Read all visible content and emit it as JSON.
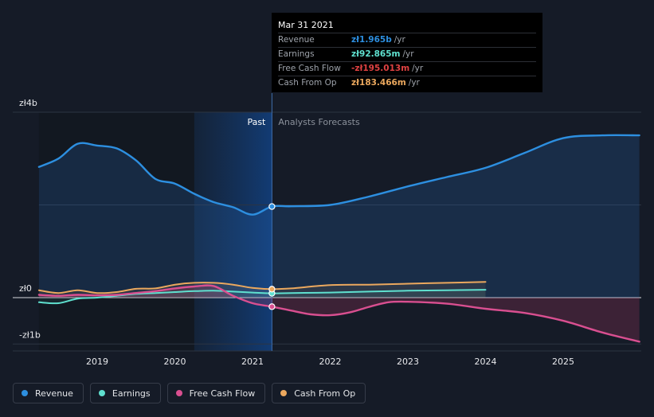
{
  "chart_data": {
    "type": "line",
    "currency": "zł",
    "ylim": [
      -1.0,
      4.0
    ],
    "xlim": [
      2018.25,
      2025.98
    ],
    "y_ticks": [
      {
        "value": 4.0,
        "label": "zł4b"
      },
      {
        "value": 0.0,
        "label": "zł0"
      },
      {
        "value": -1.0,
        "label": "-zł1b"
      }
    ],
    "x_ticks": [
      {
        "value": 2019,
        "label": "2019"
      },
      {
        "value": 2020,
        "label": "2020"
      },
      {
        "value": 2021,
        "label": "2021"
      },
      {
        "value": 2022,
        "label": "2022"
      },
      {
        "value": 2023,
        "label": "2023"
      },
      {
        "value": 2024,
        "label": "2024"
      },
      {
        "value": 2025,
        "label": "2025"
      }
    ],
    "divider_x": 2021.25,
    "highlight_range": [
      2020.25,
      2021.25
    ],
    "past_label": "Past",
    "forecast_label": "Analysts Forecasts",
    "series": [
      {
        "name": "Revenue",
        "color": "#2d8fe0",
        "points": [
          [
            2018.25,
            2.82
          ],
          [
            2018.5,
            3.0
          ],
          [
            2018.75,
            3.32
          ],
          [
            2019.0,
            3.28
          ],
          [
            2019.25,
            3.22
          ],
          [
            2019.5,
            2.96
          ],
          [
            2019.75,
            2.56
          ],
          [
            2020.0,
            2.46
          ],
          [
            2020.25,
            2.24
          ],
          [
            2020.5,
            2.06
          ],
          [
            2020.75,
            1.95
          ],
          [
            2021.0,
            1.79
          ],
          [
            2021.25,
            1.965
          ],
          [
            2021.5,
            1.97
          ],
          [
            2022.0,
            2.0
          ],
          [
            2022.5,
            2.18
          ],
          [
            2023.0,
            2.4
          ],
          [
            2023.5,
            2.6
          ],
          [
            2024.0,
            2.8
          ],
          [
            2024.5,
            3.12
          ],
          [
            2025.0,
            3.44
          ],
          [
            2025.5,
            3.5
          ],
          [
            2025.98,
            3.5
          ]
        ]
      },
      {
        "name": "Earnings",
        "color": "#5fe0cf",
        "points": [
          [
            2018.25,
            -0.1
          ],
          [
            2018.5,
            -0.12
          ],
          [
            2018.75,
            -0.02
          ],
          [
            2019.0,
            0.0
          ],
          [
            2019.25,
            0.04
          ],
          [
            2019.5,
            0.08
          ],
          [
            2019.75,
            0.1
          ],
          [
            2020.0,
            0.12
          ],
          [
            2020.25,
            0.14
          ],
          [
            2020.5,
            0.15
          ],
          [
            2020.75,
            0.13
          ],
          [
            2021.0,
            0.11
          ],
          [
            2021.25,
            0.093
          ],
          [
            2021.5,
            0.1
          ],
          [
            2022.0,
            0.11
          ],
          [
            2022.5,
            0.13
          ],
          [
            2023.0,
            0.15
          ],
          [
            2023.5,
            0.16
          ],
          [
            2024.0,
            0.17
          ]
        ]
      },
      {
        "name": "Free Cash Flow",
        "color": "#d94f90",
        "points": [
          [
            2018.25,
            0.06
          ],
          [
            2018.5,
            0.04
          ],
          [
            2018.75,
            0.06
          ],
          [
            2019.0,
            0.05
          ],
          [
            2019.25,
            0.06
          ],
          [
            2019.5,
            0.1
          ],
          [
            2019.75,
            0.14
          ],
          [
            2020.0,
            0.2
          ],
          [
            2020.25,
            0.24
          ],
          [
            2020.5,
            0.25
          ],
          [
            2020.75,
            0.04
          ],
          [
            2021.0,
            -0.12
          ],
          [
            2021.25,
            -0.195
          ],
          [
            2021.5,
            -0.28
          ],
          [
            2021.75,
            -0.36
          ],
          [
            2022.0,
            -0.38
          ],
          [
            2022.25,
            -0.32
          ],
          [
            2022.5,
            -0.2
          ],
          [
            2022.75,
            -0.1
          ],
          [
            2023.0,
            -0.09
          ],
          [
            2023.5,
            -0.13
          ],
          [
            2024.0,
            -0.24
          ],
          [
            2024.5,
            -0.33
          ],
          [
            2025.0,
            -0.5
          ],
          [
            2025.5,
            -0.75
          ],
          [
            2025.98,
            -0.95
          ]
        ]
      },
      {
        "name": "Cash From Op",
        "color": "#eba85e",
        "points": [
          [
            2018.25,
            0.16
          ],
          [
            2018.5,
            0.1
          ],
          [
            2018.75,
            0.16
          ],
          [
            2019.0,
            0.1
          ],
          [
            2019.25,
            0.12
          ],
          [
            2019.5,
            0.19
          ],
          [
            2019.75,
            0.2
          ],
          [
            2020.0,
            0.28
          ],
          [
            2020.25,
            0.32
          ],
          [
            2020.5,
            0.32
          ],
          [
            2020.75,
            0.28
          ],
          [
            2021.0,
            0.21
          ],
          [
            2021.25,
            0.183
          ],
          [
            2021.5,
            0.2
          ],
          [
            2022.0,
            0.27
          ],
          [
            2022.5,
            0.28
          ],
          [
            2023.0,
            0.3
          ],
          [
            2023.5,
            0.32
          ],
          [
            2024.0,
            0.34
          ]
        ]
      }
    ],
    "tooltip": {
      "date": "Mar 31 2021",
      "rows": [
        {
          "name": "Revenue",
          "value": "zł1.965b",
          "unit": "/yr",
          "color": "#2d8fe0"
        },
        {
          "name": "Earnings",
          "value": "zł92.865m",
          "unit": "/yr",
          "color": "#5fe0cf"
        },
        {
          "name": "Free Cash Flow",
          "value": "-zł195.013m",
          "unit": "/yr",
          "color": "#e04242"
        },
        {
          "name": "Cash From Op",
          "value": "zł183.466m",
          "unit": "/yr",
          "color": "#eba85e"
        }
      ]
    }
  },
  "legend": [
    {
      "label": "Revenue",
      "color": "#2d8fe0"
    },
    {
      "label": "Earnings",
      "color": "#5fe0cf"
    },
    {
      "label": "Free Cash Flow",
      "color": "#d94f90"
    },
    {
      "label": "Cash From Op",
      "color": "#eba85e"
    }
  ]
}
